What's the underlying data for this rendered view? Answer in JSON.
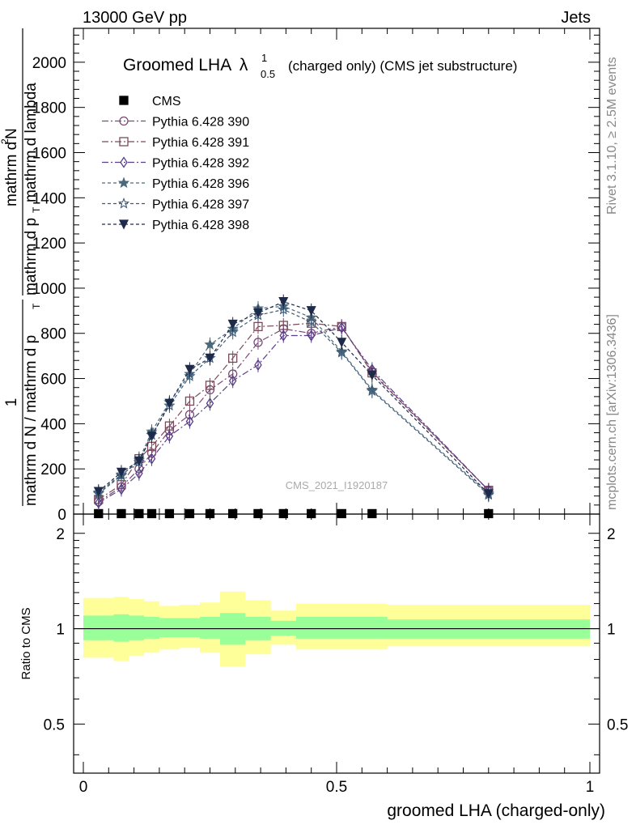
{
  "header": {
    "left": "13000 GeV pp",
    "right": "Jets"
  },
  "side_labels": {
    "rivet": "Rivet 3.1.10, ≥ 2.5M events",
    "mcplots": "mcplots.cern.ch [arXiv:1306.3436]"
  },
  "watermark": "CMS_2021_I1920187",
  "chart_data": [
    {
      "type": "line",
      "title_main": "Groomed LHA",
      "title_symbol": "λ",
      "title_sup": "1",
      "title_sub": "0.5",
      "title_rest": "(charged only) (CMS jet substructure)",
      "ylabel_parts": {
        "left_num": "1",
        "left_den": "mathrm d N / mathrm d p",
        "left_den_sub": "T",
        "right_num": "mathrm d",
        "right_num_sup": "2",
        "right_num_tail": "N",
        "right_den": "mathrm d p",
        "right_den_sub": "T",
        "right_den_tail": "mathrm d lambda"
      },
      "xlim": [
        0,
        1
      ],
      "ylim": [
        0,
        2150
      ],
      "yticks": [
        0,
        200,
        400,
        600,
        800,
        1000,
        1200,
        1400,
        1600,
        1800,
        2000
      ],
      "ytick_labels": [
        "0",
        "200",
        "400",
        "600",
        "800",
        "1000",
        "1200",
        "1400",
        "1600",
        "1800",
        "2000"
      ],
      "x": [
        0.03,
        0.075,
        0.11,
        0.135,
        0.17,
        0.21,
        0.25,
        0.295,
        0.345,
        0.395,
        0.45,
        0.51,
        0.57,
        0.8
      ],
      "series": [
        {
          "name": "CMS",
          "marker": "square-filled",
          "color": "#000000",
          "dash": "none",
          "values": [
            2,
            2,
            2,
            2,
            2,
            2,
            2,
            2,
            2,
            2,
            2,
            2,
            2,
            2
          ]
        },
        {
          "name": "Pythia 6.428 390",
          "marker": "circle-open",
          "color": "#7a4a78",
          "dash": "8,3,2,3",
          "values": [
            55,
            120,
            200,
            270,
            370,
            440,
            550,
            620,
            760,
            820,
            800,
            830,
            630,
            105
          ]
        },
        {
          "name": "Pythia 6.428 391",
          "marker": "square-open",
          "color": "#7a4a5a",
          "dash": "8,3,2,3",
          "values": [
            65,
            130,
            245,
            300,
            390,
            500,
            570,
            690,
            830,
            835,
            845,
            830,
            625,
            105
          ]
        },
        {
          "name": "Pythia 6.428 392",
          "marker": "diamond-open",
          "color": "#5a3f8a",
          "dash": "8,3,2,3",
          "values": [
            50,
            110,
            180,
            245,
            345,
            410,
            490,
            590,
            660,
            790,
            790,
            825,
            640,
            105
          ]
        },
        {
          "name": "Pythia 6.428 396",
          "marker": "star-filled",
          "color": "#4a6a7a",
          "dash": "4,3",
          "values": [
            90,
            170,
            240,
            365,
            495,
            620,
            750,
            820,
            910,
            920,
            870,
            720,
            550,
            90
          ]
        },
        {
          "name": "Pythia 6.428 397",
          "marker": "star-open",
          "color": "#3d5a78",
          "dash": "4,3",
          "values": [
            95,
            175,
            230,
            350,
            480,
            610,
            690,
            805,
            880,
            905,
            850,
            715,
            545,
            85
          ]
        },
        {
          "name": "Pythia 6.428 398",
          "marker": "triangle-down-filled",
          "color": "#1e2a4a",
          "dash": "4,3",
          "values": [
            100,
            185,
            235,
            345,
            490,
            640,
            690,
            840,
            890,
            940,
            900,
            760,
            615,
            90
          ]
        }
      ],
      "legend_position": "top-left"
    },
    {
      "type": "area",
      "ylabel": "Ratio to CMS",
      "xlabel": "groomed LHA (charged-only)",
      "xlim": [
        0,
        1
      ],
      "ylim": [
        0.35,
        2.3
      ],
      "yscale": "log",
      "yticks": [
        0.5,
        1,
        2
      ],
      "ytick_labels": [
        "0.5",
        "1",
        "2"
      ],
      "xticks": [
        0,
        0.5,
        1
      ],
      "xtick_labels": [
        "0",
        "0.5",
        "1"
      ],
      "bin_edges": [
        0.0,
        0.06,
        0.09,
        0.12,
        0.15,
        0.19,
        0.23,
        0.27,
        0.32,
        0.37,
        0.42,
        0.48,
        0.54,
        0.6,
        1.0
      ],
      "inner_band": {
        "color": "#99ff99",
        "lo": [
          0.92,
          0.91,
          0.92,
          0.93,
          0.94,
          0.94,
          0.93,
          0.89,
          0.92,
          0.95,
          0.93,
          0.93,
          0.93,
          0.93
        ],
        "hi": [
          1.1,
          1.11,
          1.1,
          1.09,
          1.08,
          1.08,
          1.09,
          1.12,
          1.09,
          1.06,
          1.09,
          1.09,
          1.09,
          1.07
        ]
      },
      "outer_band": {
        "color": "#ffff99",
        "lo": [
          0.81,
          0.79,
          0.82,
          0.84,
          0.86,
          0.87,
          0.84,
          0.76,
          0.83,
          0.89,
          0.86,
          0.86,
          0.86,
          0.88
        ],
        "hi": [
          1.25,
          1.26,
          1.24,
          1.22,
          1.18,
          1.19,
          1.21,
          1.31,
          1.23,
          1.14,
          1.2,
          1.2,
          1.2,
          1.19
        ]
      },
      "reference_line": 1
    }
  ]
}
